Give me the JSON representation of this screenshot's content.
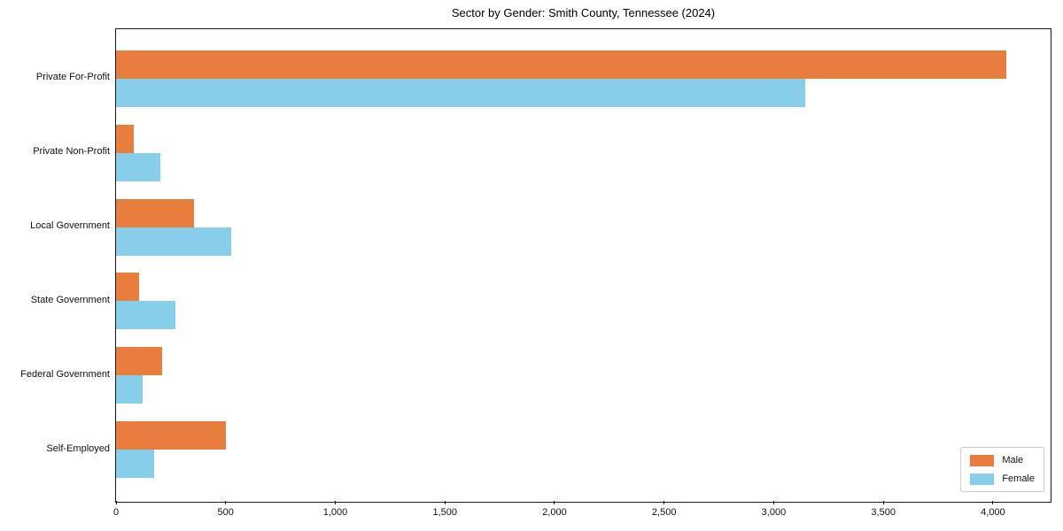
{
  "chart_data": {
    "type": "bar",
    "orientation": "horizontal",
    "title": "Sector by Gender: Smith County, Tennessee (2024)",
    "categories": [
      "Private For-Profit",
      "Private Non-Profit",
      "Local Government",
      "State Government",
      "Federal Government",
      "Self-Employed"
    ],
    "series": [
      {
        "name": "Male",
        "color": "#e87d3d",
        "values": [
          4060,
          80,
          355,
          105,
          210,
          500
        ]
      },
      {
        "name": "Female",
        "color": "#87ceeb",
        "values": [
          3145,
          200,
          525,
          270,
          120,
          175
        ]
      }
    ],
    "xlabel": "",
    "ylabel": "",
    "xlim": [
      0,
      4263
    ],
    "xticks": [
      0,
      500,
      1000,
      1500,
      2000,
      2500,
      3000,
      3500,
      4000
    ],
    "xtick_labels": [
      "0",
      "500",
      "1,000",
      "1,500",
      "2,000",
      "2,500",
      "3,000",
      "3,500",
      "4,000"
    ],
    "grid": false,
    "legend": {
      "position": "lower right",
      "entries": [
        "Male",
        "Female"
      ]
    }
  }
}
